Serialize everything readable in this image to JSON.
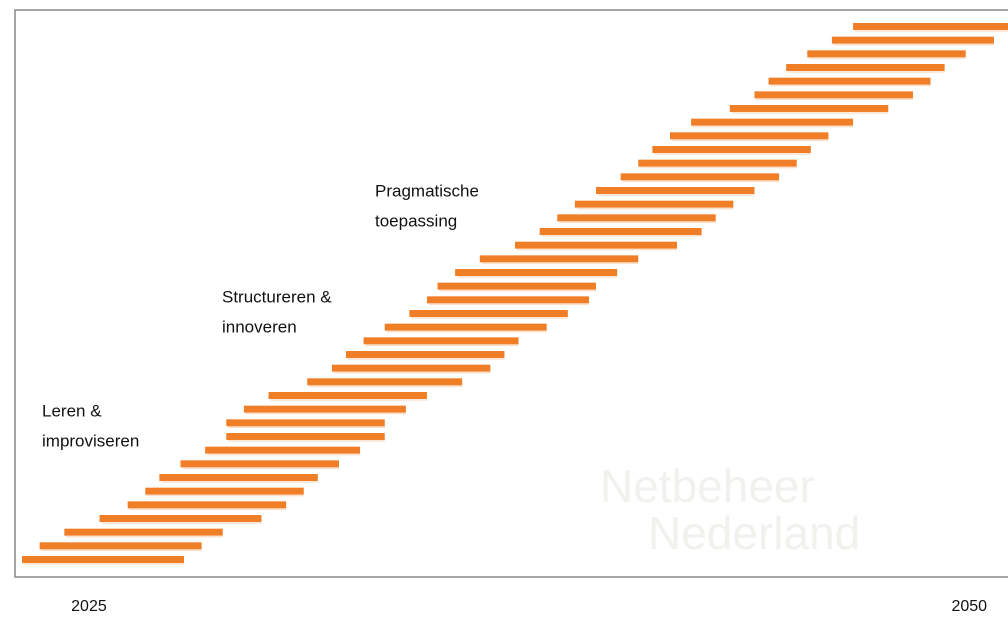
{
  "chart_data": {
    "type": "range-bar",
    "color": "#f07e26",
    "xlim": [
      2022.9,
      2051.1
    ],
    "xticks": [
      2025,
      2050
    ],
    "starts": [
      2023.1,
      2023.6,
      2024.3,
      2025.3,
      2026.1,
      2026.6,
      2027.0,
      2027.6,
      2028.3,
      2028.9,
      2028.9,
      2029.4,
      2030.1,
      2031.2,
      2031.9,
      2032.3,
      2032.8,
      2033.4,
      2034.1,
      2034.6,
      2034.9,
      2035.4,
      2036.1,
      2037.1,
      2037.8,
      2038.3,
      2038.8,
      2039.4,
      2040.1,
      2040.6,
      2041.0,
      2041.5,
      2042.1,
      2043.2,
      2043.9,
      2044.3,
      2044.8,
      2045.4,
      2046.1,
      2046.7
    ],
    "ends": [
      2027.7,
      2028.2,
      2028.8,
      2029.9,
      2030.6,
      2031.1,
      2031.5,
      2032.1,
      2032.7,
      2033.4,
      2033.4,
      2034.0,
      2034.6,
      2035.6,
      2036.4,
      2036.8,
      2037.2,
      2038.0,
      2038.6,
      2039.2,
      2039.4,
      2040.0,
      2040.6,
      2041.7,
      2042.4,
      2042.8,
      2043.3,
      2043.9,
      2044.6,
      2045.1,
      2045.5,
      2046.0,
      2046.7,
      2047.7,
      2048.4,
      2048.9,
      2049.3,
      2049.9,
      2050.7,
      2051.1
    ],
    "annotations": [
      {
        "lines": [
          "Leren &",
          "improviseren"
        ]
      },
      {
        "lines": [
          "Structureren &",
          "innoveren"
        ]
      },
      {
        "lines": [
          "Pragmatische",
          "toepassing"
        ]
      }
    ],
    "watermark": [
      "Netbeheer",
      "Nederland"
    ]
  }
}
